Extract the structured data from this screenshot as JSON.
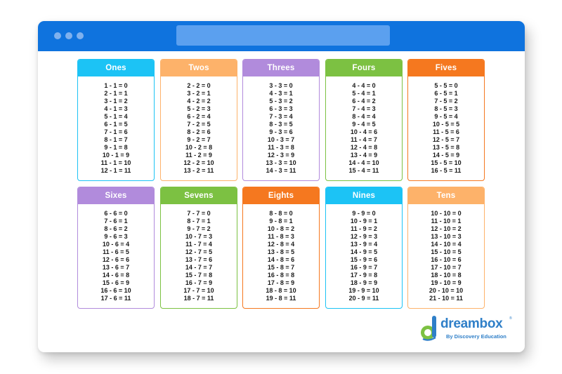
{
  "colors": {
    "titlebar": "#0f73de",
    "titlebar_dots": "#7fb1ee",
    "address_bar": "#5ba0ef",
    "blue": "#1cc3f5",
    "orange_light": "#fdb26a",
    "purple": "#b18bdc",
    "green": "#7cc142",
    "orange_dark": "#f5781f",
    "logo_blue": "#2f7fc8",
    "logo_green": "#7cc142"
  },
  "cards": [
    {
      "title": "Ones",
      "color": "#1cc3f5",
      "facts": [
        "1 - 1 = 0",
        "2 - 1 = 1",
        "3 - 1 = 2",
        "4 - 1 = 3",
        "5 - 1 = 4",
        "6 - 1 = 5",
        "7 - 1 = 6",
        "8 - 1 = 7",
        "9 - 1 = 8",
        "10 - 1 = 9",
        "11 - 1 = 10",
        "12 - 1 = 11"
      ]
    },
    {
      "title": "Twos",
      "color": "#fdb26a",
      "facts": [
        "2 - 2 = 0",
        "3 - 2 = 1",
        "4 - 2 = 2",
        "5 - 2 = 3",
        "6 - 2 = 4",
        "7 - 2 = 5",
        "8 - 2 = 6",
        "9 - 2 = 7",
        "10 - 2 = 8",
        "11 - 2 = 9",
        "12 - 2 = 10",
        "13 - 2 = 11"
      ]
    },
    {
      "title": "Threes",
      "color": "#b18bdc",
      "facts": [
        "3 - 3 = 0",
        "4 - 3 = 1",
        "5 - 3 = 2",
        "6 - 3 = 3",
        "7 - 3 = 4",
        "8 - 3 = 5",
        "9 - 3 = 6",
        "10 - 3 = 7",
        "11 - 3 = 8",
        "12 - 3 = 9",
        "13 - 3 = 10",
        "14 - 3 = 11"
      ]
    },
    {
      "title": "Fours",
      "color": "#7cc142",
      "facts": [
        "4 - 4 = 0",
        "5 - 4 = 1",
        "6 - 4 = 2",
        "7 - 4 = 3",
        "8 - 4 = 4",
        "9 - 4 = 5",
        "10 - 4 = 6",
        "11 - 4 = 7",
        "12 - 4 = 8",
        "13 - 4 = 9",
        "14 - 4 = 10",
        "15 - 4 = 11"
      ]
    },
    {
      "title": "Fives",
      "color": "#f5781f",
      "facts": [
        "5 - 5 = 0",
        "6 - 5 = 1",
        "7 - 5 = 2",
        "8 - 5 = 3",
        "9 - 5 = 4",
        "10 - 5 = 5",
        "11 - 5 = 6",
        "12 - 5 = 7",
        "13 - 5 = 8",
        "14 - 5 = 9",
        "15 - 5 = 10",
        "16 - 5 = 11"
      ]
    },
    {
      "title": "Sixes",
      "color": "#b18bdc",
      "facts": [
        "6 - 6 = 0",
        "7 - 6 = 1",
        "8 - 6 = 2",
        "9 - 6 = 3",
        "10 - 6 = 4",
        "11 - 6 = 5",
        "12 - 6 = 6",
        "13 - 6 = 7",
        "14 - 6 = 8",
        "15 - 6 = 9",
        "16 - 6 = 10",
        "17 - 6 = 11"
      ]
    },
    {
      "title": "Sevens",
      "color": "#7cc142",
      "facts": [
        "7 - 7 = 0",
        "8 - 7 = 1",
        "9 - 7 = 2",
        "10 - 7 = 3",
        "11 - 7 = 4",
        "12 - 7 = 5",
        "13 - 7 = 6",
        "14 - 7 = 7",
        "15 - 7 = 8",
        "16 - 7 = 9",
        "17 - 7 = 10",
        "18 - 7 = 11"
      ]
    },
    {
      "title": "Eights",
      "color": "#f5781f",
      "facts": [
        "8 - 8 = 0",
        "9 - 8 = 1",
        "10 - 8 = 2",
        "11 - 8 = 3",
        "12 - 8 = 4",
        "13 - 8 = 5",
        "14 - 8 = 6",
        "15 - 8 = 7",
        "16 - 8 = 8",
        "17 - 8 = 9",
        "18 - 8 = 10",
        "19 - 8 = 11"
      ]
    },
    {
      "title": "Nines",
      "color": "#1cc3f5",
      "facts": [
        "9 - 9 = 0",
        "10 - 9 = 1",
        "11 - 9 = 2",
        "12 - 9 = 3",
        "13 - 9 = 4",
        "14 - 9 = 5",
        "15 - 9 = 6",
        "16 - 9 = 7",
        "17 - 9 = 8",
        "18 - 9 = 9",
        "19 - 9 = 10",
        "20 - 9 = 11"
      ]
    },
    {
      "title": "Tens",
      "color": "#fdb26a",
      "facts": [
        "10 - 10 = 0",
        "11 - 10 = 1",
        "12 - 10 = 2",
        "13 - 10 = 3",
        "14 - 10 = 4",
        "15 - 10 = 5",
        "16 - 10 = 6",
        "17 - 10 = 7",
        "18 - 10 = 8",
        "19 - 10 = 9",
        "20 - 10 = 10",
        "21 - 10 = 11"
      ]
    }
  ],
  "logo": {
    "wordmark": "dreambox",
    "trademark": "®",
    "tagline": "By Discovery Education",
    "icon": "dreambox-d-icon"
  }
}
